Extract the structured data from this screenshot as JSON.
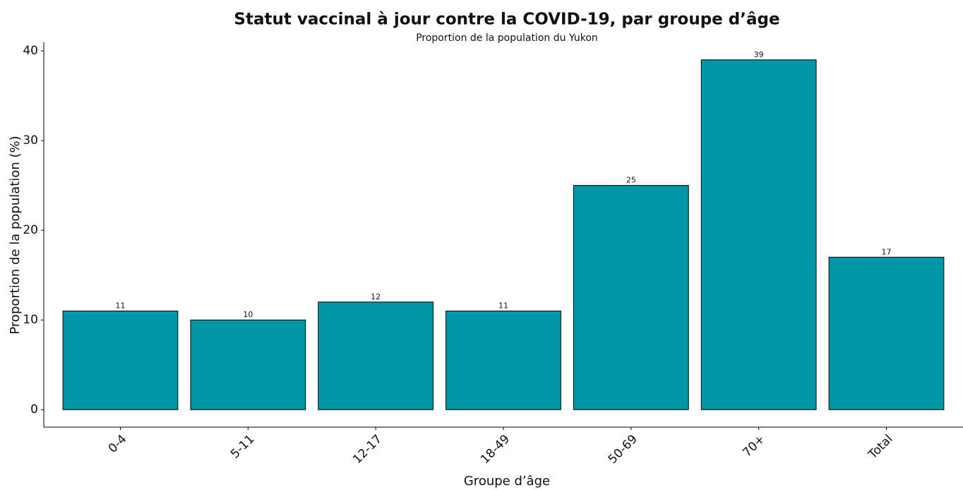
{
  "chart_data": {
    "type": "bar",
    "title": "Statut vaccinal à jour contre la COVID-19, par groupe d’âge",
    "subtitle": "Proportion de la population du Yukon",
    "x_label": "Groupe d’âge",
    "y_label": "Proportion de la population (%)",
    "categories": [
      "0-4",
      "5-11",
      "12-17",
      "18-49",
      "50-69",
      "70+",
      "Total"
    ],
    "values": [
      11,
      10,
      12,
      11,
      25,
      39,
      17
    ],
    "color": "#0096a8",
    "ylim": [
      -1.95,
      40.95
    ],
    "yticks": [
      0,
      10,
      20,
      30,
      40
    ],
    "grid": false
  }
}
